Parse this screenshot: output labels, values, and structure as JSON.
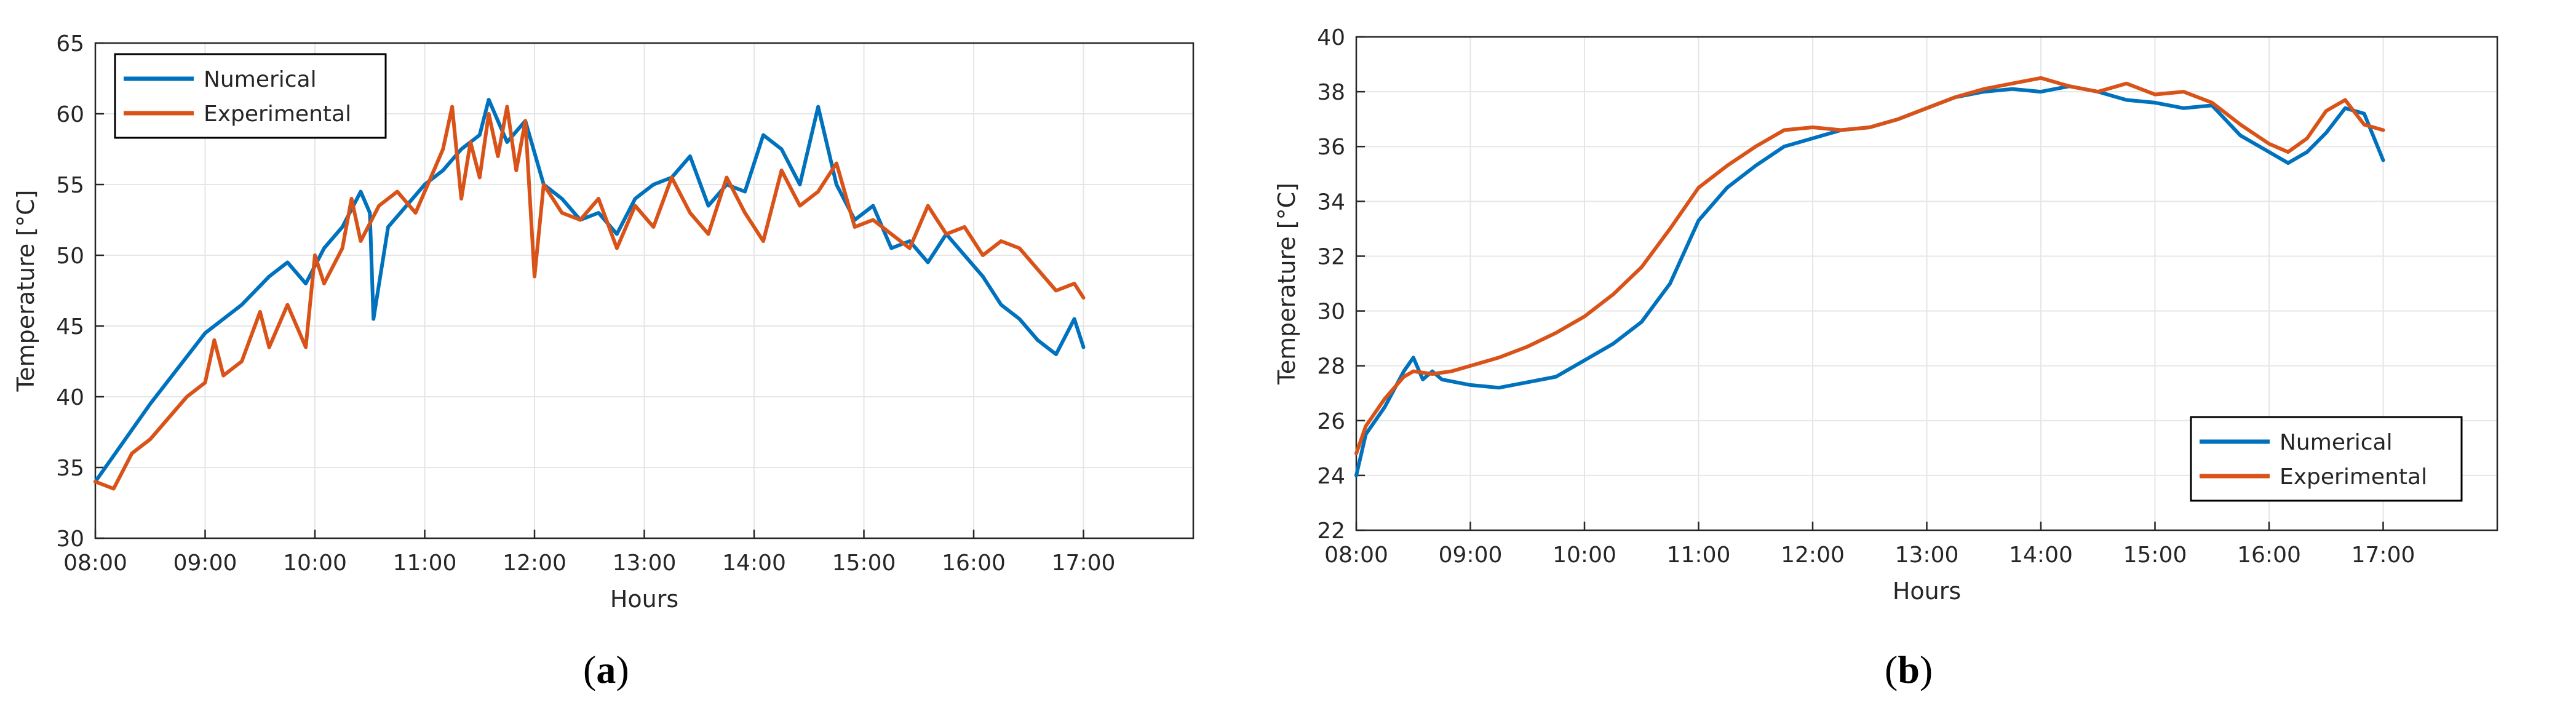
{
  "figure": {
    "panel_a_caption": {
      "open": "(",
      "letter": "a",
      "close": ")"
    },
    "panel_b_caption": {
      "open": "(",
      "letter": "b",
      "close": ")"
    }
  },
  "colors": {
    "numerical": "#0072BD",
    "experimental": "#D95319",
    "grid": "#e6e6e6",
    "axis": "#262626",
    "legend_border": "#000000"
  },
  "chart_data": [
    {
      "id": "a",
      "type": "line",
      "xlabel": "Hours",
      "ylabel": "Temperature [°C]",
      "xlim": [
        "08:00",
        "18:00"
      ],
      "ylim": [
        30,
        65
      ],
      "xticks": [
        "08:00",
        "09:00",
        "10:00",
        "11:00",
        "12:00",
        "13:00",
        "14:00",
        "15:00",
        "16:00",
        "17:00"
      ],
      "yticks": [
        30,
        35,
        40,
        45,
        50,
        55,
        60,
        65
      ],
      "grid": true,
      "legend_position": "top-left",
      "series": [
        {
          "name": "Numerical",
          "color": "#0072BD",
          "x": [
            "08:00",
            "08:30",
            "09:00",
            "09:20",
            "09:35",
            "09:45",
            "09:55",
            "10:05",
            "10:15",
            "10:25",
            "10:30",
            "10:32",
            "10:40",
            "10:50",
            "11:00",
            "11:10",
            "11:20",
            "11:30",
            "11:35",
            "11:45",
            "11:55",
            "12:05",
            "12:15",
            "12:25",
            "12:35",
            "12:45",
            "12:55",
            "13:05",
            "13:15",
            "13:25",
            "13:35",
            "13:45",
            "13:55",
            "14:05",
            "14:15",
            "14:25",
            "14:35",
            "14:45",
            "14:55",
            "15:05",
            "15:15",
            "15:25",
            "15:35",
            "15:45",
            "15:55",
            "16:05",
            "16:15",
            "16:25",
            "16:35",
            "16:45",
            "16:55",
            "17:00"
          ],
          "y": [
            34.0,
            39.5,
            44.5,
            46.5,
            48.5,
            49.5,
            48.0,
            50.5,
            52.0,
            54.5,
            53.0,
            45.5,
            52.0,
            53.5,
            55.0,
            56.0,
            57.5,
            58.5,
            61.0,
            58.0,
            59.5,
            55.0,
            54.0,
            52.5,
            53.0,
            51.5,
            54.0,
            55.0,
            55.5,
            57.0,
            53.5,
            55.0,
            54.5,
            58.5,
            57.5,
            55.0,
            60.5,
            55.0,
            52.5,
            53.5,
            50.5,
            51.0,
            49.5,
            51.5,
            50.0,
            48.5,
            46.5,
            45.5,
            44.0,
            43.0,
            45.5,
            43.5
          ]
        },
        {
          "name": "Experimental",
          "color": "#D95319",
          "x": [
            "08:00",
            "08:10",
            "08:20",
            "08:30",
            "08:40",
            "08:50",
            "09:00",
            "09:05",
            "09:10",
            "09:20",
            "09:30",
            "09:35",
            "09:45",
            "09:50",
            "09:55",
            "10:00",
            "10:05",
            "10:15",
            "10:20",
            "10:25",
            "10:35",
            "10:45",
            "10:55",
            "11:05",
            "11:10",
            "11:15",
            "11:20",
            "11:25",
            "11:30",
            "11:35",
            "11:40",
            "11:45",
            "11:50",
            "11:55",
            "12:00",
            "12:05",
            "12:15",
            "12:25",
            "12:35",
            "12:45",
            "12:55",
            "13:05",
            "13:15",
            "13:25",
            "13:35",
            "13:45",
            "13:55",
            "14:05",
            "14:15",
            "14:25",
            "14:35",
            "14:45",
            "14:55",
            "15:05",
            "15:15",
            "15:25",
            "15:35",
            "15:45",
            "15:55",
            "16:05",
            "16:15",
            "16:25",
            "16:35",
            "16:45",
            "16:55",
            "17:00"
          ],
          "y": [
            34.0,
            33.5,
            36.0,
            37.0,
            38.5,
            40.0,
            41.0,
            44.0,
            41.5,
            42.5,
            46.0,
            43.5,
            46.5,
            45.0,
            43.5,
            50.0,
            48.0,
            50.5,
            54.0,
            51.0,
            53.5,
            54.5,
            53.0,
            56.0,
            57.5,
            60.5,
            54.0,
            58.0,
            55.5,
            60.0,
            57.0,
            60.5,
            56.0,
            59.5,
            48.5,
            55.0,
            53.0,
            52.5,
            54.0,
            50.5,
            53.5,
            52.0,
            55.5,
            53.0,
            51.5,
            55.5,
            53.0,
            51.0,
            56.0,
            53.5,
            54.5,
            56.5,
            52.0,
            52.5,
            51.5,
            50.5,
            53.5,
            51.5,
            52.0,
            50.0,
            51.0,
            50.5,
            49.0,
            47.5,
            48.0,
            47.0
          ]
        }
      ]
    },
    {
      "id": "b",
      "type": "line",
      "xlabel": "Hours",
      "ylabel": "Temperature [°C]",
      "xlim": [
        "08:00",
        "18:00"
      ],
      "ylim": [
        22,
        40
      ],
      "xticks": [
        "08:00",
        "09:00",
        "10:00",
        "11:00",
        "12:00",
        "13:00",
        "14:00",
        "15:00",
        "16:00",
        "17:00"
      ],
      "yticks": [
        22,
        24,
        26,
        28,
        30,
        32,
        34,
        36,
        38,
        40
      ],
      "grid": true,
      "legend_position": "bottom-right",
      "series": [
        {
          "name": "Numerical",
          "color": "#0072BD",
          "x": [
            "08:00",
            "08:05",
            "08:15",
            "08:25",
            "08:30",
            "08:35",
            "08:40",
            "08:45",
            "09:00",
            "09:15",
            "09:30",
            "09:45",
            "10:00",
            "10:15",
            "10:30",
            "10:45",
            "11:00",
            "11:15",
            "11:30",
            "11:45",
            "12:00",
            "12:15",
            "12:30",
            "12:45",
            "13:00",
            "13:15",
            "13:30",
            "13:45",
            "14:00",
            "14:15",
            "14:30",
            "14:45",
            "15:00",
            "15:15",
            "15:30",
            "15:45",
            "16:00",
            "16:10",
            "16:20",
            "16:30",
            "16:40",
            "16:50",
            "17:00"
          ],
          "y": [
            24.0,
            25.5,
            26.5,
            27.8,
            28.3,
            27.5,
            27.8,
            27.5,
            27.3,
            27.2,
            27.4,
            27.6,
            28.2,
            28.8,
            29.6,
            31.0,
            33.3,
            34.5,
            35.3,
            36.0,
            36.3,
            36.6,
            36.7,
            37.0,
            37.4,
            37.8,
            38.0,
            38.1,
            38.0,
            38.2,
            38.0,
            37.7,
            37.6,
            37.4,
            37.5,
            36.4,
            35.8,
            35.4,
            35.8,
            36.5,
            37.4,
            37.2,
            35.5
          ]
        },
        {
          "name": "Experimental",
          "color": "#D95319",
          "x": [
            "08:00",
            "08:05",
            "08:15",
            "08:25",
            "08:30",
            "08:40",
            "08:50",
            "09:00",
            "09:15",
            "09:30",
            "09:45",
            "10:00",
            "10:15",
            "10:30",
            "10:45",
            "11:00",
            "11:15",
            "11:30",
            "11:45",
            "12:00",
            "12:15",
            "12:30",
            "12:45",
            "13:00",
            "13:15",
            "13:30",
            "13:45",
            "14:00",
            "14:15",
            "14:30",
            "14:45",
            "15:00",
            "15:15",
            "15:30",
            "15:45",
            "16:00",
            "16:10",
            "16:20",
            "16:30",
            "16:40",
            "16:50",
            "17:00"
          ],
          "y": [
            24.8,
            25.8,
            26.8,
            27.6,
            27.8,
            27.7,
            27.8,
            28.0,
            28.3,
            28.7,
            29.2,
            29.8,
            30.6,
            31.6,
            33.0,
            34.5,
            35.3,
            36.0,
            36.6,
            36.7,
            36.6,
            36.7,
            37.0,
            37.4,
            37.8,
            38.1,
            38.3,
            38.5,
            38.2,
            38.0,
            38.3,
            37.9,
            38.0,
            37.6,
            36.8,
            36.1,
            35.8,
            36.3,
            37.3,
            37.7,
            36.8,
            36.6
          ]
        }
      ]
    }
  ]
}
